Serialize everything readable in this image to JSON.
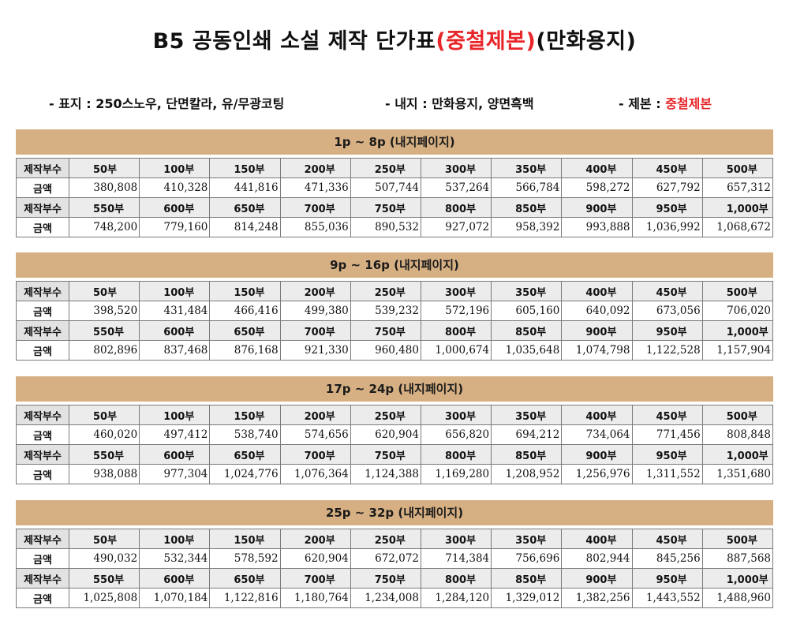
{
  "title": {
    "main": "B5 공동인쇄 소설 제작 단가표",
    "highlight1": "(중철제본)",
    "highlight2": "(만화용지)"
  },
  "specs": [
    {
      "text": "- 표지 : 250스노우, 단면칼라, 유/무광코팅",
      "value": ""
    },
    {
      "text": "- 내지 : 만화용지, 양면흑백",
      "value": ""
    },
    {
      "text": "- 제본 : ",
      "value": "중철제본"
    }
  ],
  "row_labels": {
    "qty": "제작부수",
    "amount": "금액"
  },
  "sections": [
    {
      "band": "1p ~ 8p (내지페이지)",
      "rows": [
        {
          "type": "qty",
          "cells": [
            "50부",
            "100부",
            "150부",
            "200부",
            "250부",
            "300부",
            "350부",
            "400부",
            "450부",
            "500부"
          ]
        },
        {
          "type": "amt",
          "cells": [
            "380,808",
            "410,328",
            "441,816",
            "471,336",
            "507,744",
            "537,264",
            "566,784",
            "598,272",
            "627,792",
            "657,312"
          ]
        },
        {
          "type": "qty",
          "cells": [
            "550부",
            "600부",
            "650부",
            "700부",
            "750부",
            "800부",
            "850부",
            "900부",
            "950부",
            "1,000부"
          ]
        },
        {
          "type": "amt",
          "cells": [
            "748,200",
            "779,160",
            "814,248",
            "855,036",
            "890,532",
            "927,072",
            "958,392",
            "993,888",
            "1,036,992",
            "1,068,672"
          ]
        }
      ]
    },
    {
      "band": "9p ~ 16p (내지페이지)",
      "rows": [
        {
          "type": "qty",
          "cells": [
            "50부",
            "100부",
            "150부",
            "200부",
            "250부",
            "300부",
            "350부",
            "400부",
            "450부",
            "500부"
          ]
        },
        {
          "type": "amt",
          "cells": [
            "398,520",
            "431,484",
            "466,416",
            "499,380",
            "539,232",
            "572,196",
            "605,160",
            "640,092",
            "673,056",
            "706,020"
          ]
        },
        {
          "type": "qty",
          "cells": [
            "550부",
            "600부",
            "650부",
            "700부",
            "750부",
            "800부",
            "850부",
            "900부",
            "950부",
            "1,000부"
          ]
        },
        {
          "type": "amt",
          "cells": [
            "802,896",
            "837,468",
            "876,168",
            "921,330",
            "960,480",
            "1,000,674",
            "1,035,648",
            "1,074,798",
            "1,122,528",
            "1,157,904"
          ]
        }
      ]
    },
    {
      "band": "17p ~ 24p (내지페이지)",
      "rows": [
        {
          "type": "qty",
          "cells": [
            "50부",
            "100부",
            "150부",
            "200부",
            "250부",
            "300부",
            "350부",
            "400부",
            "450부",
            "500부"
          ]
        },
        {
          "type": "amt",
          "cells": [
            "460,020",
            "497,412",
            "538,740",
            "574,656",
            "620,904",
            "656,820",
            "694,212",
            "734,064",
            "771,456",
            "808,848"
          ]
        },
        {
          "type": "qty",
          "cells": [
            "550부",
            "600부",
            "650부",
            "700부",
            "750부",
            "800부",
            "850부",
            "900부",
            "950부",
            "1,000부"
          ]
        },
        {
          "type": "amt",
          "cells": [
            "938,088",
            "977,304",
            "1,024,776",
            "1,076,364",
            "1,124,388",
            "1,169,280",
            "1,208,952",
            "1,256,976",
            "1,311,552",
            "1,351,680"
          ]
        }
      ]
    },
    {
      "band": "25p ~ 32p (내지페이지)",
      "rows": [
        {
          "type": "qty",
          "cells": [
            "50부",
            "100부",
            "150부",
            "200부",
            "250부",
            "300부",
            "350부",
            "400부",
            "450부",
            "500부"
          ]
        },
        {
          "type": "amt",
          "cells": [
            "490,032",
            "532,344",
            "578,592",
            "620,904",
            "672,072",
            "714,384",
            "756,696",
            "802,944",
            "845,256",
            "887,568"
          ]
        },
        {
          "type": "qty",
          "cells": [
            "550부",
            "600부",
            "650부",
            "700부",
            "750부",
            "800부",
            "850부",
            "900부",
            "950부",
            "1,000부"
          ]
        },
        {
          "type": "amt",
          "cells": [
            "1,025,808",
            "1,070,184",
            "1,122,816",
            "1,180,764",
            "1,234,008",
            "1,284,120",
            "1,329,012",
            "1,382,256",
            "1,443,552",
            "1,488,960"
          ]
        }
      ]
    }
  ],
  "colors": {
    "band": "#d6b083",
    "accent_red": "#e8262a",
    "qty_row_bg": "#ececec"
  }
}
